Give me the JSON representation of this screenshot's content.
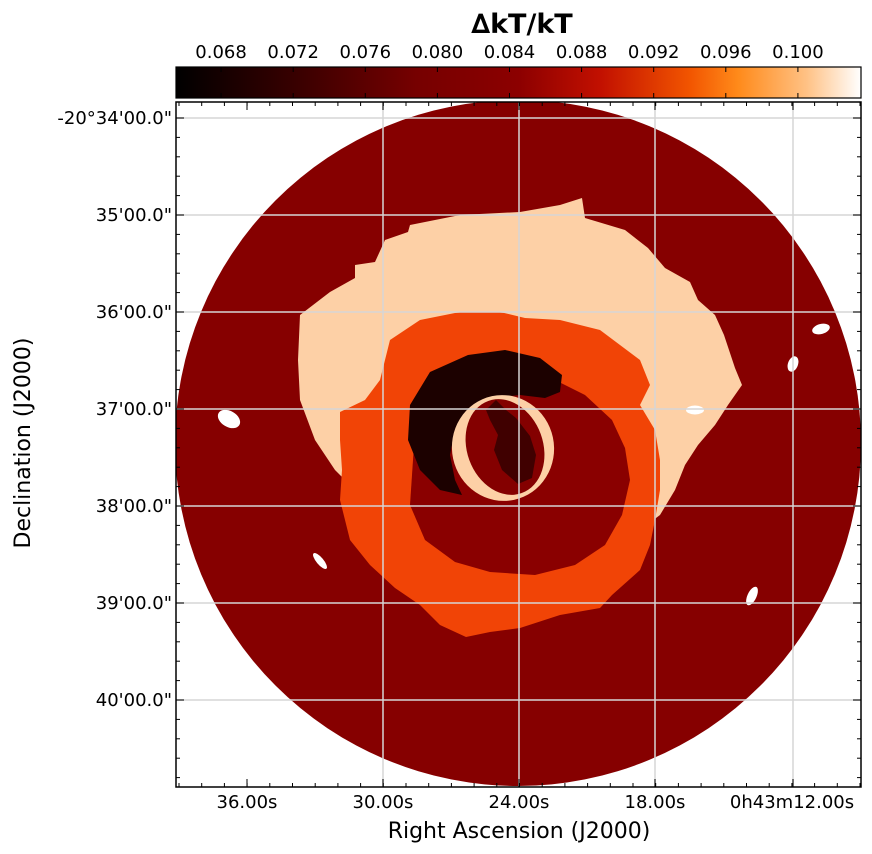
{
  "chart_data": {
    "type": "heatmap",
    "title": "",
    "colorbar": {
      "label": "∆kT/kT",
      "colormap": "gist_heat",
      "range": [
        0.0655,
        0.1035
      ],
      "ticks": [
        0.068,
        0.072,
        0.076,
        0.08,
        0.084,
        0.088,
        0.092,
        0.096,
        0.1
      ],
      "tick_labels": [
        "0.068",
        "0.072",
        "0.076",
        "0.080",
        "0.084",
        "0.088",
        "0.092",
        "0.096",
        "0.100"
      ]
    },
    "xlabel": "Right Ascension (J2000)",
    "ylabel": "Declination (J2000)",
    "x_tick_labels": [
      "36.00s",
      "30.00s",
      "24.00s",
      "18.00s",
      "0h43m12.00s"
    ],
    "y_tick_labels": [
      "-20°34'00.0\"",
      "35'00.0\"",
      "36'00.0\"",
      "37'00.0\"",
      "38'00.0\"",
      "39'00.0\"",
      "40'00.0\""
    ],
    "grid": true,
    "regions": [
      {
        "name": "outer field",
        "value": 0.0795
      },
      {
        "name": "upper halo",
        "value": 0.101
      },
      {
        "name": "lower ring",
        "value": 0.0895
      },
      {
        "name": "middle ring",
        "value": 0.08
      },
      {
        "name": "dark crescent",
        "value": 0.069
      },
      {
        "name": "bright core ring",
        "value": 0.101
      },
      {
        "name": "core",
        "value": 0.0795
      },
      {
        "name": "nucleus",
        "value": 0.07
      }
    ],
    "masked_sources": 6
  },
  "colors": {
    "outer_field": "#860000",
    "upper_halo": "#fdd0a6",
    "lower_ring": "#f14406",
    "middle_ring": "#8a0000",
    "dark_crescent": "#1c0100",
    "core": "#840000",
    "nucleus": "#400000",
    "masked": "#ffffff",
    "grid": "#d6d6d6"
  }
}
